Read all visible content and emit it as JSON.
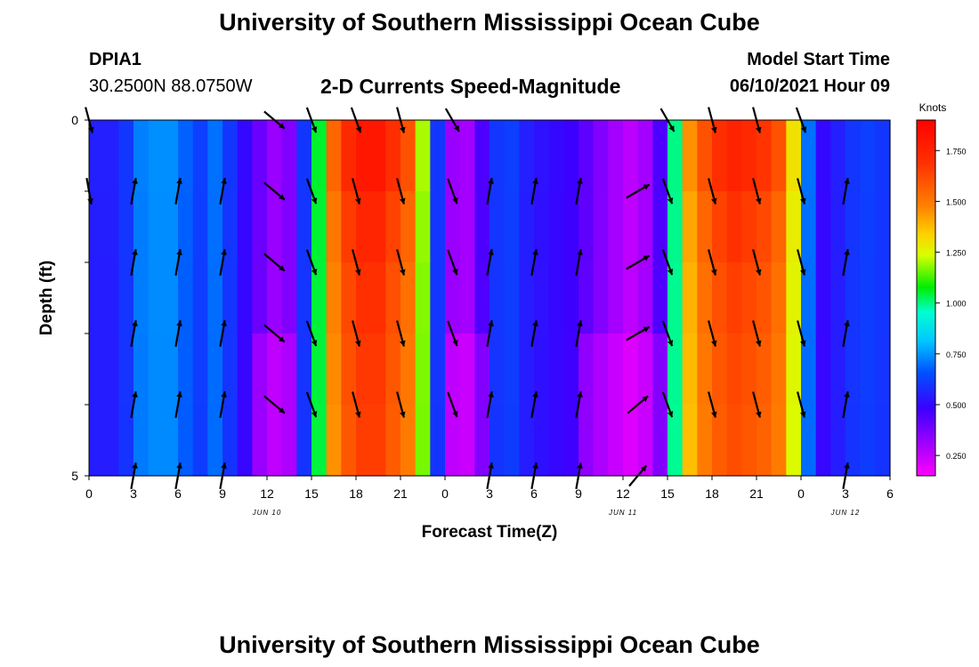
{
  "header": {
    "title_top": "University of Southern Mississippi Ocean Cube",
    "station": "DPIA1",
    "coords": "30.2500N  88.0750W",
    "plot_title": "2-D Currents Speed-Magnitude",
    "model_label": "Model Start Time",
    "model_time": "06/10/2021 Hour 09",
    "title_bottom": "University of Southern Mississippi Ocean Cube"
  },
  "chart_data": {
    "type": "heatmap",
    "title": "2-D Currents Speed-Magnitude",
    "xlabel": "Forecast Time(Z)",
    "ylabel": "Depth (ft)",
    "xlim": [
      0,
      54
    ],
    "ylim": [
      0,
      5
    ],
    "x_tick_labels": [
      "0",
      "3",
      "6",
      "9",
      "12",
      "15",
      "18",
      "21",
      "0",
      "3",
      "6",
      "9",
      "12",
      "15",
      "18",
      "21",
      "0",
      "3",
      "6"
    ],
    "y_tick_labels": [
      "0",
      "5"
    ],
    "date_labels": [
      {
        "hour": 12,
        "text": "JUN 10"
      },
      {
        "hour": 36,
        "text": "JUN 11"
      },
      {
        "hour": 51,
        "text": "JUN 12"
      }
    ],
    "colorbar": {
      "unit": "Knots",
      "range": [
        0.15,
        1.9
      ],
      "ticks": [
        "0.250",
        "0.500",
        "0.750",
        "1.000",
        "1.250",
        "1.500",
        "1.750"
      ]
    },
    "depth_layers": [
      0,
      1,
      2,
      3,
      4,
      5
    ],
    "speed_profile_knots": [
      0.55,
      0.55,
      0.6,
      0.72,
      0.74,
      0.74,
      0.68,
      0.62,
      0.7,
      0.6,
      0.5,
      0.4,
      0.32,
      0.36,
      0.6,
      1.05,
      1.55,
      1.72,
      1.8,
      1.8,
      1.7,
      1.6,
      1.2,
      0.6,
      0.32,
      0.3,
      0.45,
      0.6,
      0.62,
      0.55,
      0.52,
      0.5,
      0.48,
      0.42,
      0.36,
      0.3,
      0.26,
      0.3,
      0.45,
      1.0,
      1.45,
      1.6,
      1.7,
      1.75,
      1.72,
      1.68,
      1.6,
      1.3,
      0.7,
      0.5,
      0.55,
      0.6,
      0.62,
      0.6,
      0.6
    ],
    "depth_factors": [
      1.0,
      0.92,
      0.87,
      0.84,
      0.82
    ],
    "arrows": [
      {
        "hour": 0,
        "depth": 0,
        "dir_deg": 165
      },
      {
        "hour": 12.5,
        "depth": 0,
        "dir_deg": 130
      },
      {
        "hour": 15,
        "depth": 0,
        "dir_deg": 160
      },
      {
        "hour": 18,
        "depth": 0,
        "dir_deg": 160
      },
      {
        "hour": 21,
        "depth": 0,
        "dir_deg": 165
      },
      {
        "hour": 24.5,
        "depth": 0,
        "dir_deg": 150
      },
      {
        "hour": 39,
        "depth": 0,
        "dir_deg": 150
      },
      {
        "hour": 42,
        "depth": 0,
        "dir_deg": 165
      },
      {
        "hour": 45,
        "depth": 0,
        "dir_deg": 165
      },
      {
        "hour": 48,
        "depth": 0,
        "dir_deg": 160
      },
      {
        "hour": 3,
        "depth": 1,
        "dir_deg": 10
      },
      {
        "hour": 6,
        "depth": 1,
        "dir_deg": 10
      },
      {
        "hour": 9,
        "depth": 1,
        "dir_deg": 10
      },
      {
        "hour": 0,
        "depth": 1,
        "dir_deg": 170
      },
      {
        "hour": 12.5,
        "depth": 1,
        "dir_deg": 130
      },
      {
        "hour": 15,
        "depth": 1,
        "dir_deg": 160
      },
      {
        "hour": 18,
        "depth": 1,
        "dir_deg": 165
      },
      {
        "hour": 21,
        "depth": 1,
        "dir_deg": 165
      },
      {
        "hour": 24.5,
        "depth": 1,
        "dir_deg": 160
      },
      {
        "hour": 27,
        "depth": 1,
        "dir_deg": 10
      },
      {
        "hour": 30,
        "depth": 1,
        "dir_deg": 10
      },
      {
        "hour": 33,
        "depth": 1,
        "dir_deg": 10
      },
      {
        "hour": 37,
        "depth": 1,
        "dir_deg": 60
      },
      {
        "hour": 39,
        "depth": 1,
        "dir_deg": 160
      },
      {
        "hour": 42,
        "depth": 1,
        "dir_deg": 165
      },
      {
        "hour": 45,
        "depth": 1,
        "dir_deg": 165
      },
      {
        "hour": 48,
        "depth": 1,
        "dir_deg": 165
      },
      {
        "hour": 51,
        "depth": 1,
        "dir_deg": 10
      },
      {
        "hour": 3,
        "depth": 2,
        "dir_deg": 10
      },
      {
        "hour": 6,
        "depth": 2,
        "dir_deg": 10
      },
      {
        "hour": 9,
        "depth": 2,
        "dir_deg": 10
      },
      {
        "hour": 12.5,
        "depth": 2,
        "dir_deg": 130
      },
      {
        "hour": 15,
        "depth": 2,
        "dir_deg": 160
      },
      {
        "hour": 18,
        "depth": 2,
        "dir_deg": 165
      },
      {
        "hour": 21,
        "depth": 2,
        "dir_deg": 165
      },
      {
        "hour": 24.5,
        "depth": 2,
        "dir_deg": 160
      },
      {
        "hour": 27,
        "depth": 2,
        "dir_deg": 10
      },
      {
        "hour": 30,
        "depth": 2,
        "dir_deg": 10
      },
      {
        "hour": 33,
        "depth": 2,
        "dir_deg": 10
      },
      {
        "hour": 37,
        "depth": 2,
        "dir_deg": 60
      },
      {
        "hour": 39,
        "depth": 2,
        "dir_deg": 160
      },
      {
        "hour": 42,
        "depth": 2,
        "dir_deg": 165
      },
      {
        "hour": 45,
        "depth": 2,
        "dir_deg": 165
      },
      {
        "hour": 48,
        "depth": 2,
        "dir_deg": 165
      },
      {
        "hour": 51,
        "depth": 2,
        "dir_deg": 10
      },
      {
        "hour": 3,
        "depth": 3,
        "dir_deg": 10
      },
      {
        "hour": 6,
        "depth": 3,
        "dir_deg": 10
      },
      {
        "hour": 9,
        "depth": 3,
        "dir_deg": 10
      },
      {
        "hour": 12.5,
        "depth": 3,
        "dir_deg": 130
      },
      {
        "hour": 15,
        "depth": 3,
        "dir_deg": 160
      },
      {
        "hour": 18,
        "depth": 3,
        "dir_deg": 165
      },
      {
        "hour": 21,
        "depth": 3,
        "dir_deg": 165
      },
      {
        "hour": 24.5,
        "depth": 3,
        "dir_deg": 160
      },
      {
        "hour": 27,
        "depth": 3,
        "dir_deg": 10
      },
      {
        "hour": 30,
        "depth": 3,
        "dir_deg": 10
      },
      {
        "hour": 33,
        "depth": 3,
        "dir_deg": 10
      },
      {
        "hour": 37,
        "depth": 3,
        "dir_deg": 60
      },
      {
        "hour": 39,
        "depth": 3,
        "dir_deg": 160
      },
      {
        "hour": 42,
        "depth": 3,
        "dir_deg": 165
      },
      {
        "hour": 45,
        "depth": 3,
        "dir_deg": 165
      },
      {
        "hour": 48,
        "depth": 3,
        "dir_deg": 165
      },
      {
        "hour": 51,
        "depth": 3,
        "dir_deg": 10
      },
      {
        "hour": 3,
        "depth": 4,
        "dir_deg": 10
      },
      {
        "hour": 6,
        "depth": 4,
        "dir_deg": 10
      },
      {
        "hour": 9,
        "depth": 4,
        "dir_deg": 10
      },
      {
        "hour": 12.5,
        "depth": 4,
        "dir_deg": 130
      },
      {
        "hour": 15,
        "depth": 4,
        "dir_deg": 160
      },
      {
        "hour": 18,
        "depth": 4,
        "dir_deg": 165
      },
      {
        "hour": 21,
        "depth": 4,
        "dir_deg": 165
      },
      {
        "hour": 24.5,
        "depth": 4,
        "dir_deg": 160
      },
      {
        "hour": 27,
        "depth": 4,
        "dir_deg": 10
      },
      {
        "hour": 30,
        "depth": 4,
        "dir_deg": 10
      },
      {
        "hour": 33,
        "depth": 4,
        "dir_deg": 10
      },
      {
        "hour": 37,
        "depth": 4,
        "dir_deg": 50
      },
      {
        "hour": 39,
        "depth": 4,
        "dir_deg": 160
      },
      {
        "hour": 42,
        "depth": 4,
        "dir_deg": 165
      },
      {
        "hour": 45,
        "depth": 4,
        "dir_deg": 165
      },
      {
        "hour": 48,
        "depth": 4,
        "dir_deg": 165
      },
      {
        "hour": 51,
        "depth": 4,
        "dir_deg": 10
      },
      {
        "hour": 3,
        "depth": 5,
        "dir_deg": 10
      },
      {
        "hour": 6,
        "depth": 5,
        "dir_deg": 10
      },
      {
        "hour": 9,
        "depth": 5,
        "dir_deg": 10
      },
      {
        "hour": 27,
        "depth": 5,
        "dir_deg": 10
      },
      {
        "hour": 30,
        "depth": 5,
        "dir_deg": 10
      },
      {
        "hour": 33,
        "depth": 5,
        "dir_deg": 10
      },
      {
        "hour": 37,
        "depth": 5,
        "dir_deg": 40
      },
      {
        "hour": 51,
        "depth": 5,
        "dir_deg": 10
      }
    ]
  }
}
